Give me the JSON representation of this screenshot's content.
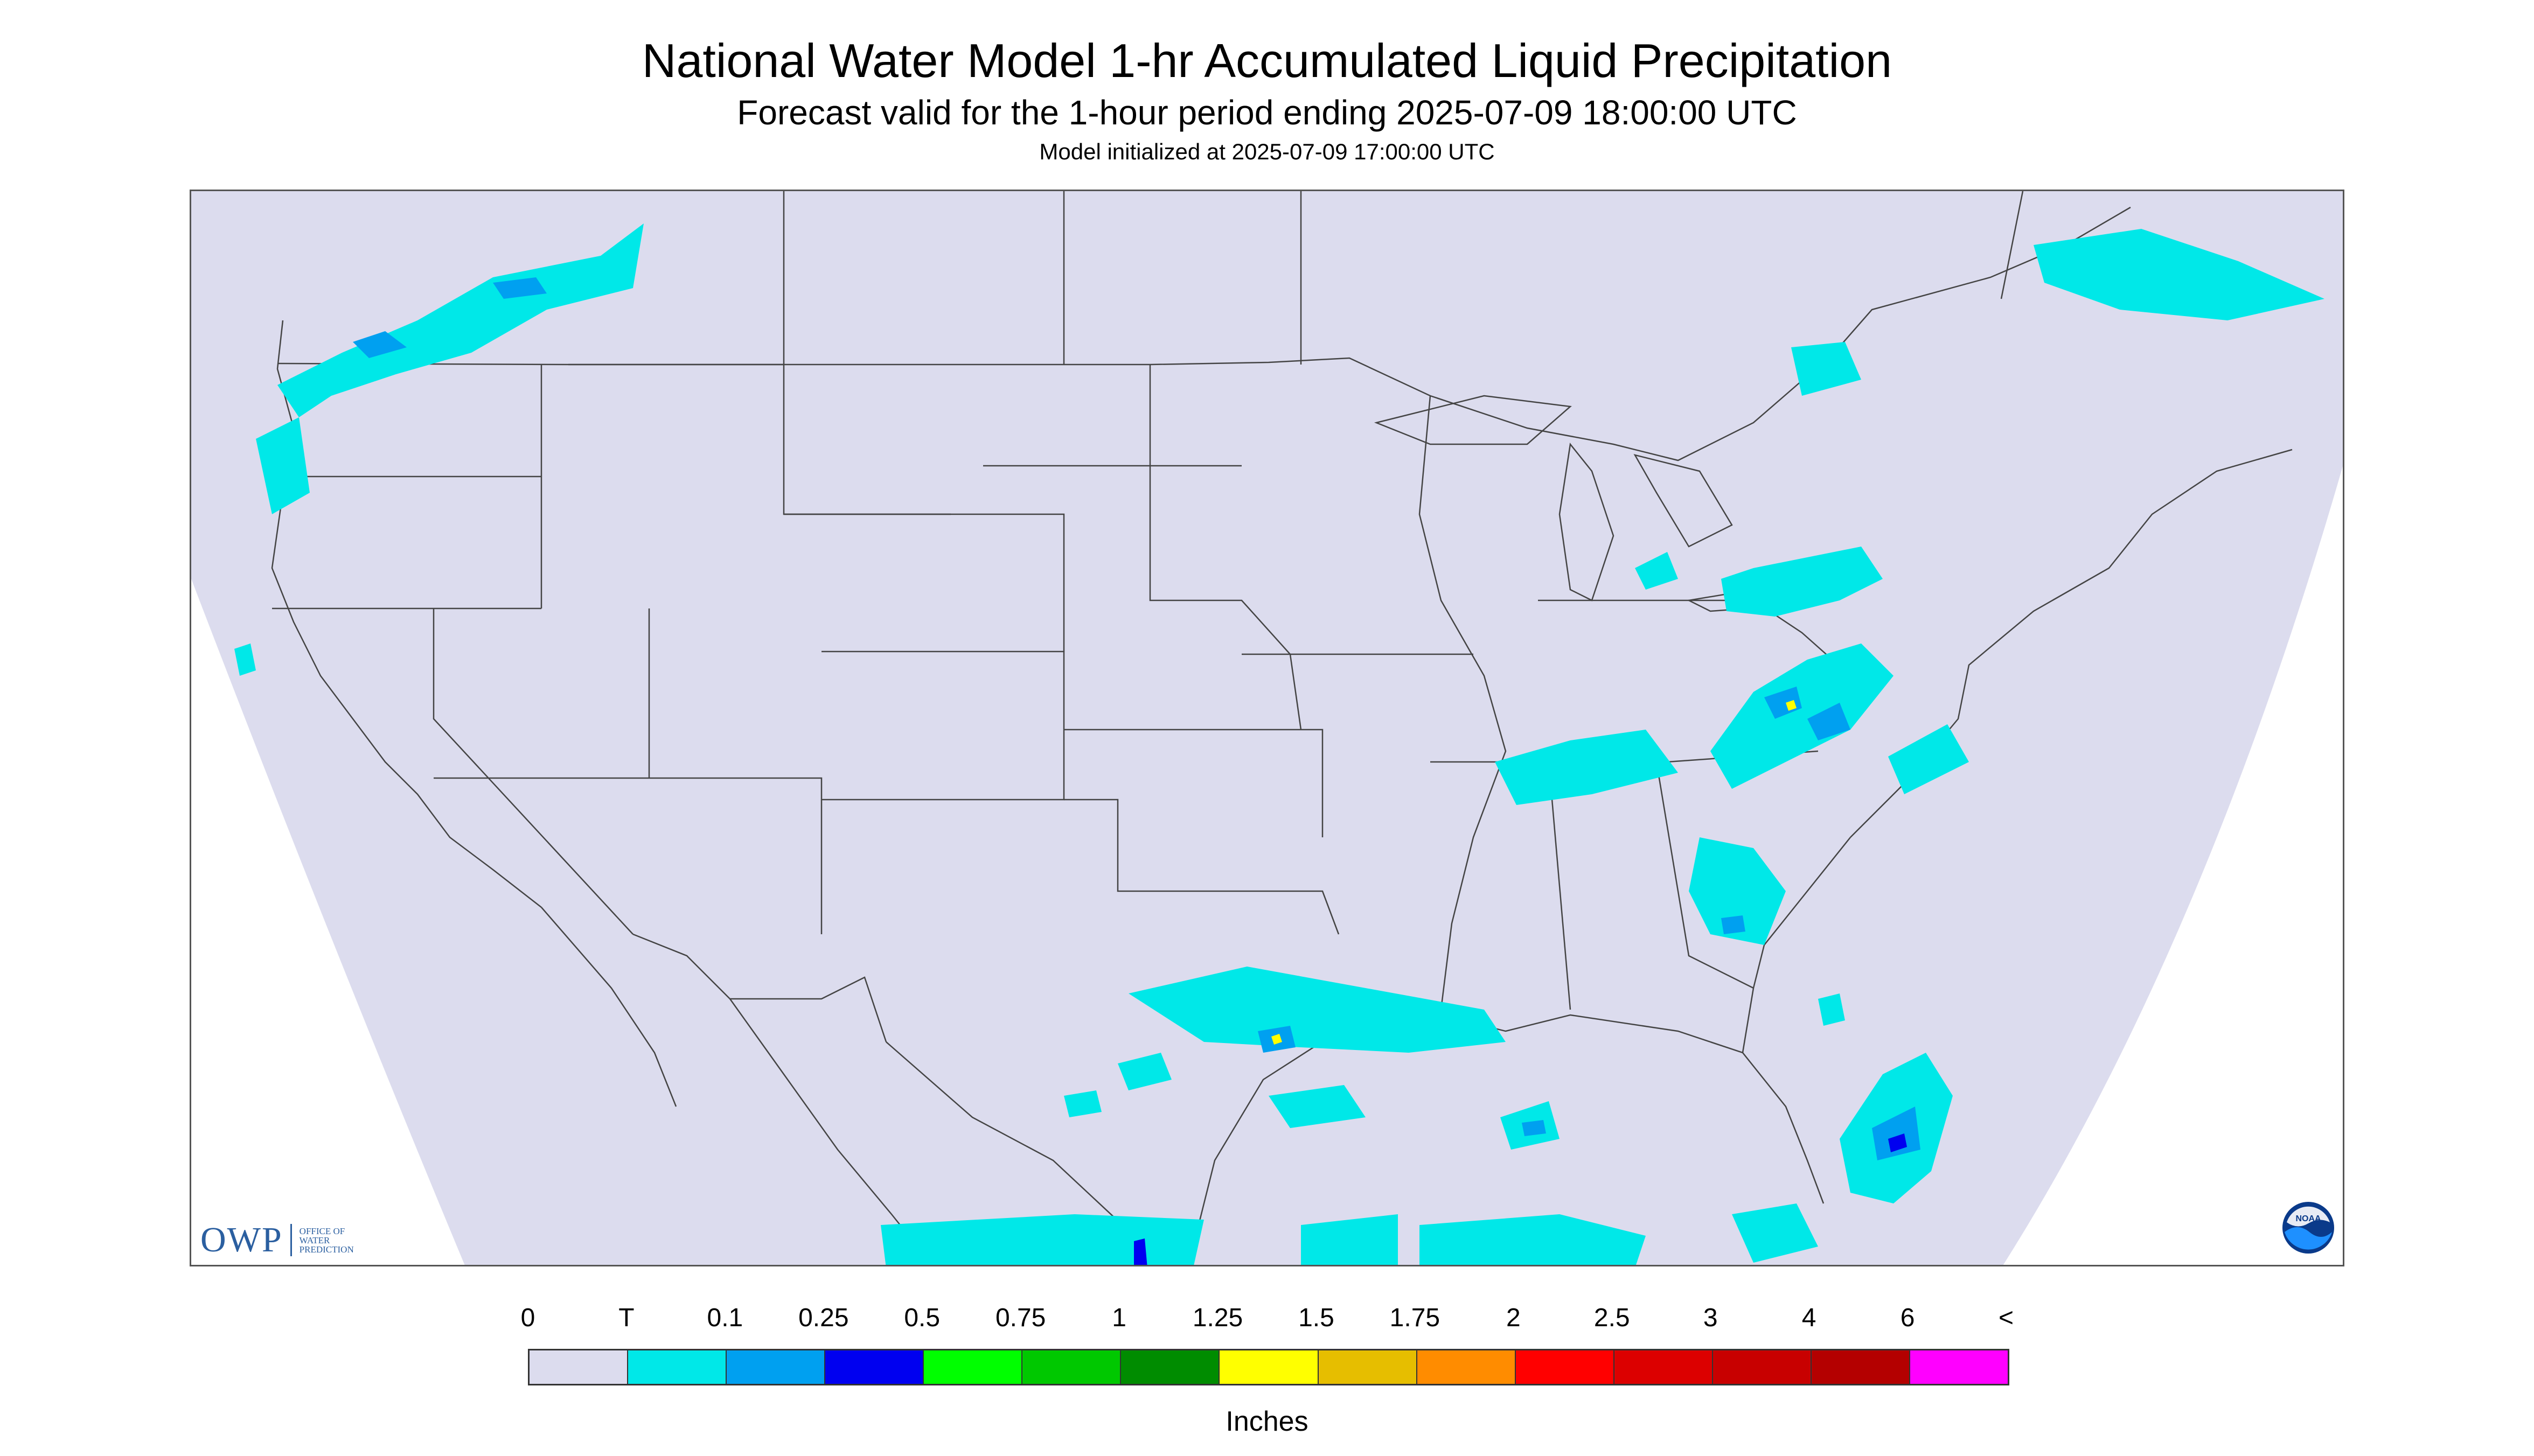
{
  "title": "National Water Model 1-hr Accumulated Liquid Precipitation",
  "subtitle": "Forecast valid for the 1-hour period ending 2025-07-09 18:00:00 UTC",
  "init_line": "Model initialized at 2025-07-09 17:00:00 UTC",
  "logos": {
    "owp_letters": "OWP",
    "owp_line1": "OFFICE OF",
    "owp_line2": "WATER",
    "owp_line3": "PREDICTION",
    "noaa_text": "NOAA"
  },
  "legend": {
    "units": "Inches",
    "tick_labels": [
      "0",
      "T",
      "0.1",
      "0.25",
      "0.5",
      "0.75",
      "1",
      "1.25",
      "1.5",
      "1.75",
      "2",
      "2.5",
      "3",
      "4",
      "6",
      "<"
    ],
    "colors": [
      "#dcdcee",
      "#00e8e8",
      "#00a0f0",
      "#0000f0",
      "#00ff00",
      "#00c800",
      "#008c00",
      "#ffff00",
      "#e6be00",
      "#ff8c00",
      "#ff0000",
      "#dc0000",
      "#c80000",
      "#b40000",
      "#ff00ff",
      "#9b55c8"
    ]
  },
  "map_colors": {
    "domain_fill": "#dcdcee",
    "outside_fill": "#ffffff",
    "trace": "#00e8e8",
    "light": "#00a0f0",
    "moderate": "#0000f0",
    "heavy": "#ffff00",
    "border_line": "#444444"
  }
}
